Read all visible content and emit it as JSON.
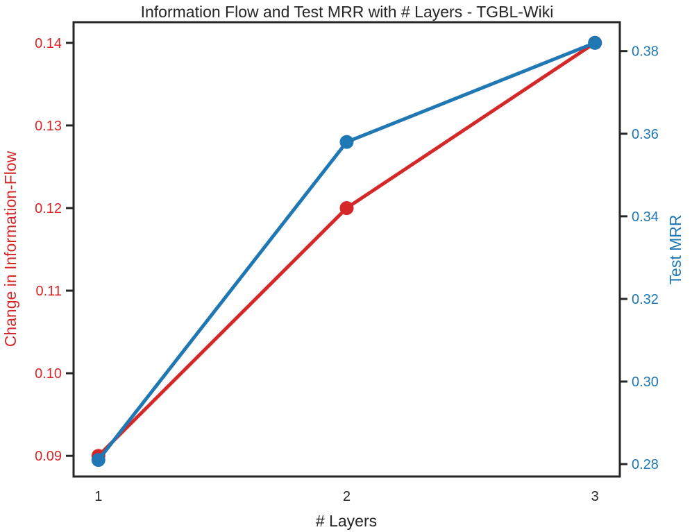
{
  "chart_data": {
    "type": "line",
    "title": "Information Flow and Test MRR with # Layers - TGBL-Wiki",
    "xlabel": "# Layers",
    "x": [
      1,
      2,
      3
    ],
    "xtick_labels": [
      "1",
      "2",
      "3"
    ],
    "xlim": [
      0.9,
      3.1
    ],
    "grid": false,
    "legend": "none",
    "frame_color": "#262626",
    "tick_color": "#262626",
    "text_color": "#262626",
    "axes": {
      "left": {
        "label": "Change in Information-Flow",
        "color": "#d62728",
        "lim": [
          0.0875,
          0.1425
        ],
        "ticks": [
          0.09,
          0.1,
          0.11,
          0.12,
          0.13,
          0.14
        ],
        "tick_labels": [
          "0.09",
          "0.10",
          "0.11",
          "0.12",
          "0.13",
          "0.14"
        ]
      },
      "right": {
        "label": "Test MRR",
        "color": "#1f77b4",
        "lim": [
          0.277,
          0.387
        ],
        "ticks": [
          0.28,
          0.3,
          0.32,
          0.34,
          0.36,
          0.38
        ],
        "tick_labels": [
          "0.28",
          "0.30",
          "0.32",
          "0.34",
          "0.36",
          "0.38"
        ]
      }
    },
    "series": [
      {
        "name": "Change in Information-Flow",
        "axis": "left",
        "color": "#d62728",
        "marker": "circle",
        "x": [
          1,
          2,
          3
        ],
        "values": [
          0.09,
          0.12,
          0.14
        ]
      },
      {
        "name": "Test MRR",
        "axis": "right",
        "color": "#1f77b4",
        "marker": "circle",
        "x": [
          1,
          2,
          3
        ],
        "values": [
          0.281,
          0.358,
          0.382
        ]
      }
    ]
  }
}
